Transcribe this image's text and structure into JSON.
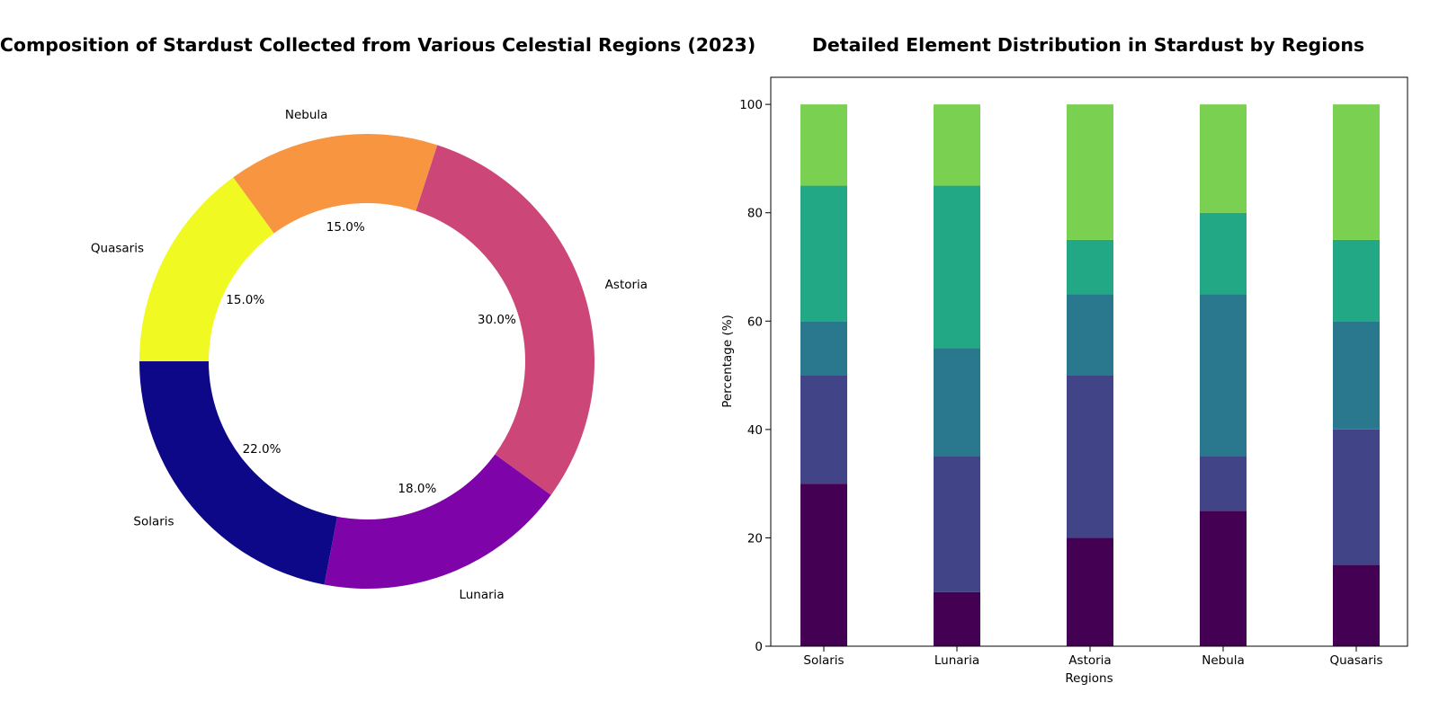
{
  "chart_data": [
    {
      "type": "pie",
      "style": "donut",
      "title": "Composition of Stardust Collected from Various Celestial Regions (2023)",
      "categories": [
        "Solaris",
        "Lunaria",
        "Astoria",
        "Nebula",
        "Quasaris"
      ],
      "values": [
        22.0,
        18.0,
        30.0,
        15.0,
        15.0
      ],
      "percent_labels": [
        "22.0%",
        "18.0%",
        "30.0%",
        "15.0%",
        "15.0%"
      ],
      "colors": [
        "#0d0887",
        "#7e03a8",
        "#cc4778",
        "#f89540",
        "#f0f921"
      ]
    },
    {
      "type": "bar",
      "stacked": true,
      "title": "Detailed Element Distribution in Stardust by Regions",
      "xlabel": "Regions",
      "ylabel": "Percentage (%)",
      "categories": [
        "Solaris",
        "Lunaria",
        "Astoria",
        "Nebula",
        "Quasaris"
      ],
      "ylim": [
        0,
        105
      ],
      "yticks": [
        0,
        20,
        40,
        60,
        80,
        100
      ],
      "series": [
        {
          "values": [
            30,
            10,
            20,
            25,
            15
          ],
          "color": "#440154"
        },
        {
          "values": [
            20,
            25,
            30,
            10,
            25
          ],
          "color": "#414487"
        },
        {
          "values": [
            10,
            20,
            15,
            30,
            20
          ],
          "color": "#2a788e"
        },
        {
          "values": [
            25,
            30,
            10,
            15,
            15
          ],
          "color": "#22a884"
        },
        {
          "values": [
            15,
            15,
            25,
            20,
            25
          ],
          "color": "#7ad151"
        }
      ],
      "grid": false,
      "legend": "none"
    }
  ]
}
